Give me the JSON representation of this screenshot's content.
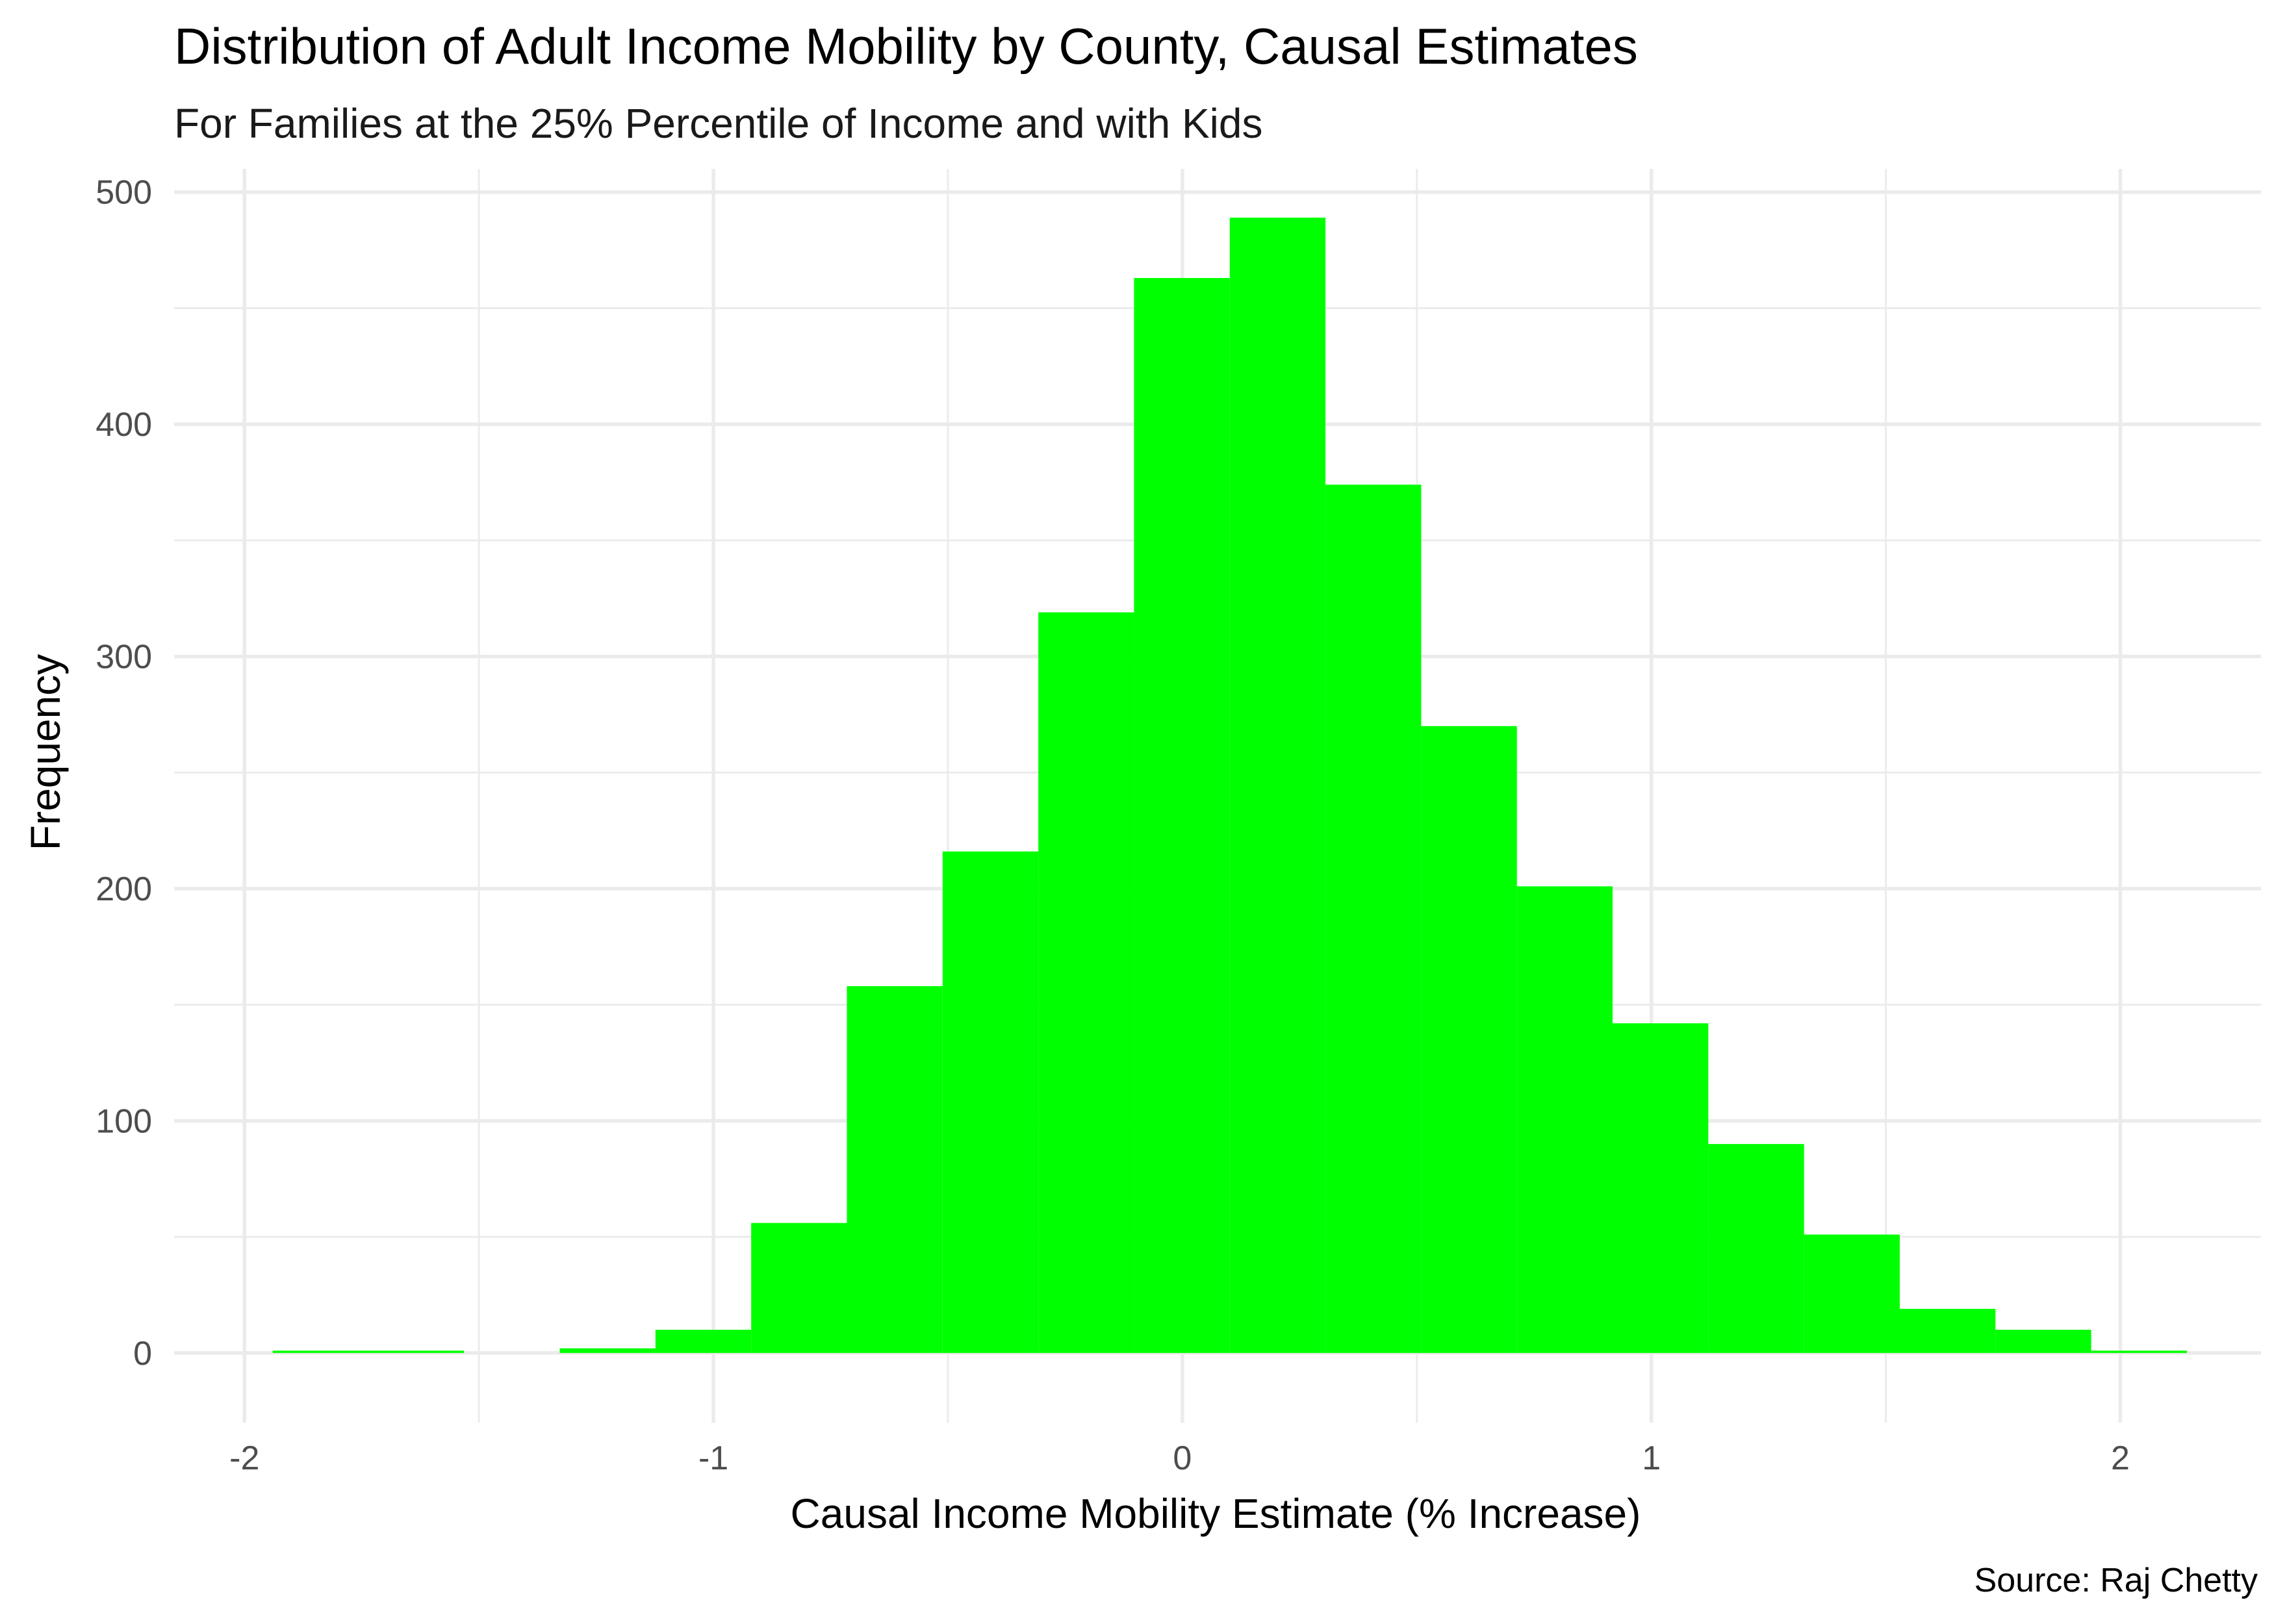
{
  "chart_data": {
    "type": "bar",
    "title": "Distribution of Adult Income Mobility by County, Causal Estimates",
    "subtitle": "For Families at the 25% Percentile of Income and with Kids",
    "xlabel": "Causal Income Mobility Estimate (% Increase)",
    "ylabel": "Frequency",
    "caption": "Source: Raj Chetty",
    "xlim": [
      -2.15,
      2.3
    ],
    "ylim": [
      -30,
      510
    ],
    "x_ticks": [
      -2,
      -1,
      0,
      1,
      2
    ],
    "x_tick_labels": [
      "-2",
      "-1",
      "0",
      "1",
      "2"
    ],
    "x_minor_ticks": [
      -1.5,
      -0.5,
      0.5,
      1.5
    ],
    "y_ticks": [
      0,
      100,
      200,
      300,
      400,
      500
    ],
    "y_tick_labels": [
      "0",
      "100",
      "200",
      "300",
      "400",
      "500"
    ],
    "y_minor_ticks": [
      50,
      150,
      250,
      350,
      450
    ],
    "bin_width": 0.2041,
    "bins": [
      {
        "x0": -1.94,
        "x1": -1.7359,
        "count": 1
      },
      {
        "x0": -1.7359,
        "x1": -1.5318,
        "count": 1
      },
      {
        "x0": -1.5318,
        "x1": -1.3277,
        "count": 0
      },
      {
        "x0": -1.3277,
        "x1": -1.1236,
        "count": 2
      },
      {
        "x0": -1.1236,
        "x1": -0.9195,
        "count": 10
      },
      {
        "x0": -0.9195,
        "x1": -0.7154,
        "count": 56
      },
      {
        "x0": -0.7154,
        "x1": -0.5113,
        "count": 158
      },
      {
        "x0": -0.5113,
        "x1": -0.3072,
        "count": 216
      },
      {
        "x0": -0.3072,
        "x1": -0.1031,
        "count": 319
      },
      {
        "x0": -0.1031,
        "x1": 0.101,
        "count": 463
      },
      {
        "x0": 0.101,
        "x1": 0.3051,
        "count": 489
      },
      {
        "x0": 0.3051,
        "x1": 0.5092,
        "count": 374
      },
      {
        "x0": 0.5092,
        "x1": 0.7133,
        "count": 270
      },
      {
        "x0": 0.7133,
        "x1": 0.9174,
        "count": 201
      },
      {
        "x0": 0.9174,
        "x1": 1.1215,
        "count": 142
      },
      {
        "x0": 1.1215,
        "x1": 1.3256,
        "count": 90
      },
      {
        "x0": 1.3256,
        "x1": 1.5297,
        "count": 51
      },
      {
        "x0": 1.5297,
        "x1": 1.7338,
        "count": 19
      },
      {
        "x0": 1.7338,
        "x1": 1.9379,
        "count": 10
      },
      {
        "x0": 1.9379,
        "x1": 2.142,
        "count": 1
      }
    ],
    "bar_color": "#00ff00",
    "grid": true,
    "legend": "none"
  }
}
